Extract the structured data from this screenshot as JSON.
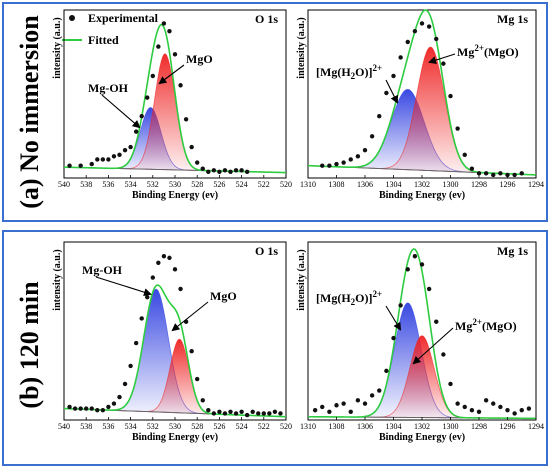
{
  "legend": {
    "experimental": "Experimental",
    "fitted": "Fitted"
  },
  "rows": {
    "a": "(a) No immersion",
    "b": "(b) 120 min"
  },
  "colors": {
    "frame": "#3a6fd0",
    "fitted": "#2ecc40",
    "blue": "#2f3fe0",
    "red": "#ef2020",
    "background_line": "#666666",
    "points": "#111111"
  },
  "chart_data": [
    {
      "id": "a-o1s",
      "type": "line",
      "title": "O 1s",
      "xlabel": "Binding Energy (ev)",
      "ylabel": "intensity (a.u.)",
      "xlim": [
        540,
        520
      ],
      "x_ticks": [
        "540",
        "538",
        "536",
        "534",
        "532",
        "530",
        "528",
        "526",
        "524",
        "522",
        "520"
      ],
      "annotations": [
        "Mg-OH",
        "MgO"
      ],
      "peaks": [
        {
          "name": "Mg-OH",
          "center": 532.2,
          "fwhm": 2.2,
          "height": 0.4
        },
        {
          "name": "MgO",
          "center": 530.9,
          "fwhm": 2.2,
          "height": 0.75
        }
      ],
      "background": {
        "high_be": 0.07,
        "low_be": 0.035
      },
      "experimental": [
        [
          539.5,
          0.08
        ],
        [
          538.5,
          0.08
        ],
        [
          537.5,
          0.09
        ],
        [
          537,
          0.12
        ],
        [
          536.5,
          0.12
        ],
        [
          536,
          0.12
        ],
        [
          535.5,
          0.14
        ],
        [
          535,
          0.15
        ],
        [
          534.5,
          0.18
        ],
        [
          534,
          0.2
        ],
        [
          533.5,
          0.3
        ],
        [
          533,
          0.4
        ],
        [
          532.5,
          0.52
        ],
        [
          532,
          0.66
        ],
        [
          531.5,
          0.85
        ],
        [
          531,
          1.0
        ],
        [
          530.5,
          0.95
        ],
        [
          530,
          0.8
        ],
        [
          529.5,
          0.6
        ],
        [
          529,
          0.38
        ],
        [
          528.5,
          0.2
        ],
        [
          528,
          0.1
        ],
        [
          527.5,
          0.06
        ],
        [
          527,
          0.04
        ],
        [
          526.5,
          0.05
        ],
        [
          526,
          0.04
        ],
        [
          525.5,
          0.05
        ],
        [
          525,
          0.04
        ],
        [
          524.5,
          0.05
        ],
        [
          524,
          0.05
        ],
        [
          523.5,
          0.04
        ]
      ]
    },
    {
      "id": "a-mg1s",
      "type": "line",
      "title": "Mg 1s",
      "xlabel": "Binding Energy (ev)",
      "ylabel": "intensity (a.u.)",
      "xlim": [
        1310,
        1294
      ],
      "x_ticks": [
        "1310",
        "1308",
        "1306",
        "1304",
        "1302",
        "1300",
        "1298",
        "1296",
        "1294"
      ],
      "annotations": [
        "[Mg(H2O)]2+",
        "Mg2+(MgO)"
      ],
      "peaks": [
        {
          "name": "[Mg(H2O)]2+",
          "center": 1303.0,
          "fwhm": 2.7,
          "height": 0.52
        },
        {
          "name": "Mg2+(MgO)",
          "center": 1301.4,
          "fwhm": 2.3,
          "height": 0.8
        }
      ],
      "background": {
        "high_be": 0.08,
        "low_be": 0.02
      },
      "experimental": [
        [
          1309,
          0.08
        ],
        [
          1308.5,
          0.08
        ],
        [
          1308,
          0.09
        ],
        [
          1307.5,
          0.1
        ],
        [
          1307,
          0.12
        ],
        [
          1306.5,
          0.14
        ],
        [
          1306,
          0.18
        ],
        [
          1305.5,
          0.27
        ],
        [
          1305,
          0.4
        ],
        [
          1304.5,
          0.55
        ],
        [
          1304,
          0.66
        ],
        [
          1303.5,
          0.78
        ],
        [
          1303,
          0.88
        ],
        [
          1302.5,
          0.95
        ],
        [
          1302,
          1.0
        ],
        [
          1301.5,
          0.98
        ],
        [
          1301,
          0.9
        ],
        [
          1300.5,
          0.74
        ],
        [
          1300,
          0.53
        ],
        [
          1299.5,
          0.32
        ],
        [
          1299,
          0.15
        ],
        [
          1298.5,
          0.06
        ],
        [
          1298,
          0.03
        ],
        [
          1297.5,
          0.03
        ],
        [
          1297,
          0.02
        ],
        [
          1296.5,
          0.03
        ],
        [
          1296,
          0.02
        ],
        [
          1295.5,
          0.02
        ],
        [
          1295,
          0.03
        ]
      ]
    },
    {
      "id": "b-o1s",
      "type": "line",
      "title": "O 1s",
      "xlabel": "Binding Energy (ev)",
      "ylabel": "intensity (a.u.)",
      "xlim": [
        540,
        520
      ],
      "x_ticks": [
        "540",
        "538",
        "536",
        "534",
        "532",
        "530",
        "528",
        "526",
        "524",
        "522",
        "520"
      ],
      "annotations": [
        "Mg-OH",
        "MgO"
      ],
      "peaks": [
        {
          "name": "Mg-OH",
          "center": 531.7,
          "fwhm": 2.6,
          "height": 0.75
        },
        {
          "name": "MgO",
          "center": 529.6,
          "fwhm": 2.0,
          "height": 0.45
        }
      ],
      "background": {
        "high_be": 0.07,
        "low_be": 0.02
      },
      "experimental": [
        [
          539.5,
          0.08
        ],
        [
          539,
          0.07
        ],
        [
          538.5,
          0.07
        ],
        [
          538,
          0.07
        ],
        [
          537.5,
          0.07
        ],
        [
          537,
          0.06
        ],
        [
          536.5,
          0.06
        ],
        [
          536,
          0.08
        ],
        [
          535.5,
          0.1
        ],
        [
          535,
          0.14
        ],
        [
          534.5,
          0.22
        ],
        [
          534,
          0.33
        ],
        [
          533.5,
          0.47
        ],
        [
          533,
          0.62
        ],
        [
          532.5,
          0.75
        ],
        [
          532,
          0.87
        ],
        [
          531.5,
          0.96
        ],
        [
          531,
          1.0
        ],
        [
          530.5,
          0.99
        ],
        [
          530,
          0.92
        ],
        [
          529.5,
          0.8
        ],
        [
          529,
          0.6
        ],
        [
          528.5,
          0.42
        ],
        [
          528,
          0.25
        ],
        [
          527.5,
          0.12
        ],
        [
          527,
          0.06
        ],
        [
          526.5,
          0.04
        ],
        [
          526,
          0.05
        ],
        [
          525.5,
          0.04
        ],
        [
          525,
          0.05
        ],
        [
          524.5,
          0.04
        ],
        [
          524,
          0.05
        ],
        [
          523.5,
          0.03
        ],
        [
          523,
          0.05
        ],
        [
          522.5,
          0.04
        ],
        [
          522,
          0.04
        ],
        [
          521.5,
          0.04
        ],
        [
          521,
          0.05
        ],
        [
          520.5,
          0.04
        ]
      ]
    },
    {
      "id": "b-mg1s",
      "type": "line",
      "title": "Mg 1s",
      "xlabel": "Binding Energy (ev)",
      "ylabel": "intensity (a.u.)",
      "xlim": [
        1310,
        1294
      ],
      "x_ticks": [
        "1310",
        "1308",
        "1306",
        "1304",
        "1302",
        "1300",
        "1298",
        "1296",
        "1294"
      ],
      "annotations": [
        "[Mg(H2O)]2+",
        "Mg2+(MgO)"
      ],
      "peaks": [
        {
          "name": "[Mg(H2O)]2+",
          "center": 1303.0,
          "fwhm": 2.2,
          "height": 0.7
        },
        {
          "name": "Mg2+(MgO)",
          "center": 1302.0,
          "fwhm": 2.0,
          "height": 0.5
        }
      ],
      "background": {
        "high_be": 0.02,
        "low_be": 0.01
      },
      "experimental": [
        [
          1309.5,
          0.06
        ],
        [
          1309,
          0.08
        ],
        [
          1308.5,
          0.05
        ],
        [
          1308,
          0.09
        ],
        [
          1307.5,
          0.1
        ],
        [
          1307,
          0.05
        ],
        [
          1306.5,
          0.12
        ],
        [
          1306,
          0.1
        ],
        [
          1305.5,
          0.15
        ],
        [
          1305,
          0.18
        ],
        [
          1304.5,
          0.3
        ],
        [
          1304,
          0.5
        ],
        [
          1303.5,
          0.7
        ],
        [
          1303,
          0.92
        ],
        [
          1302.5,
          1.0
        ],
        [
          1302,
          0.95
        ],
        [
          1301.5,
          0.8
        ],
        [
          1301,
          0.6
        ],
        [
          1300.5,
          0.4
        ],
        [
          1300,
          0.22
        ],
        [
          1299.5,
          0.1
        ],
        [
          1299,
          0.08
        ],
        [
          1298.5,
          0.06
        ],
        [
          1298,
          0.05
        ],
        [
          1297.5,
          0.12
        ],
        [
          1297,
          0.1
        ],
        [
          1296.5,
          0.08
        ],
        [
          1296,
          0.06
        ],
        [
          1295.5,
          0.04
        ],
        [
          1295,
          0.06
        ],
        [
          1294.5,
          0.07
        ]
      ]
    }
  ]
}
